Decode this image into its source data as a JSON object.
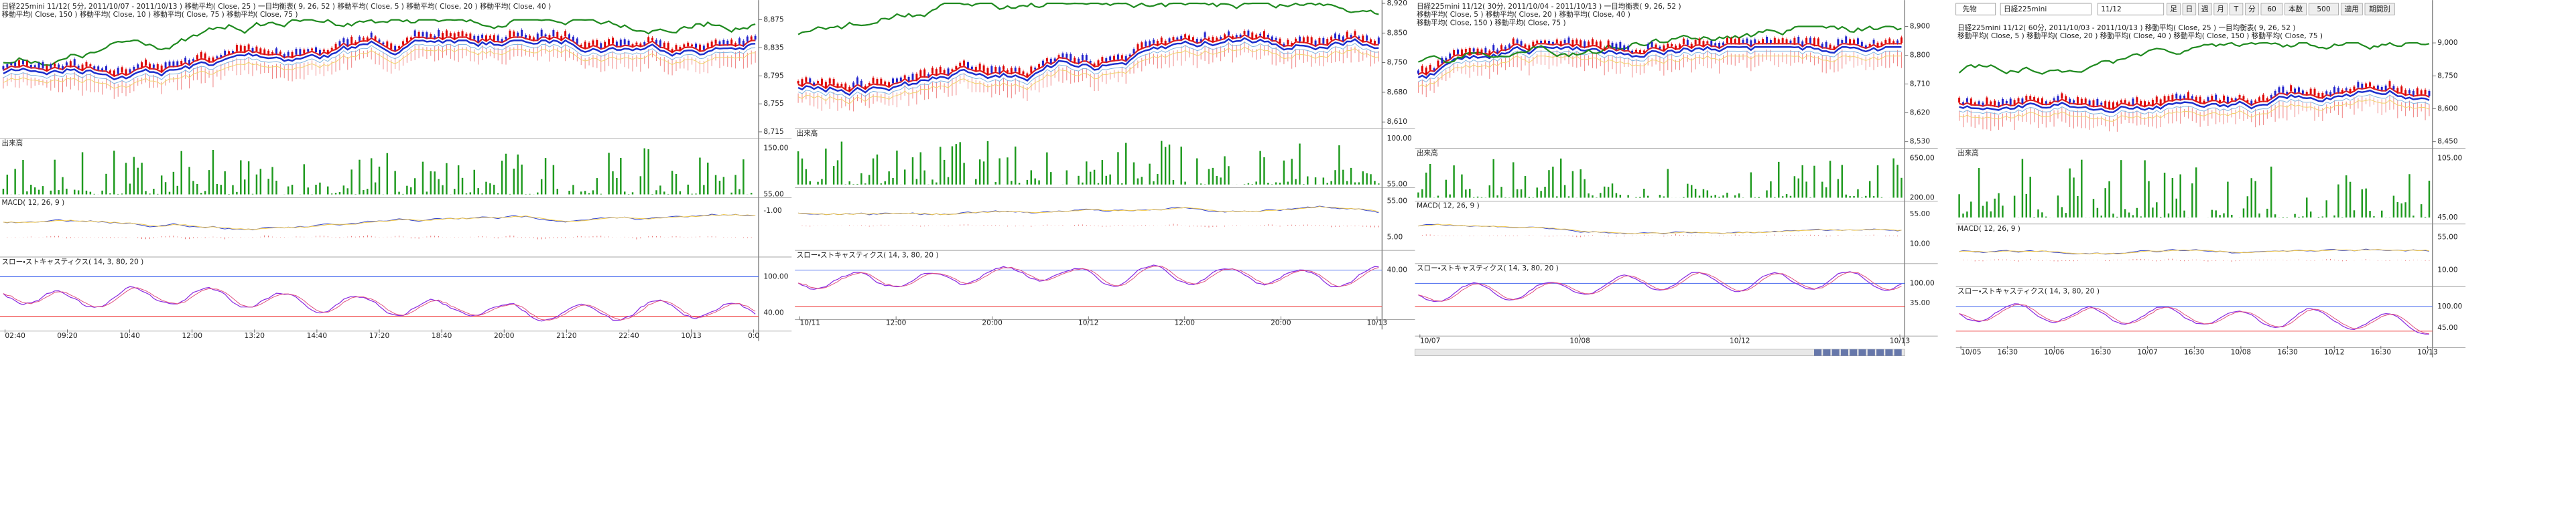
{
  "toolbar": {
    "market": "先物",
    "symbol": "日経225mini",
    "contract": "11/12",
    "buttons": [
      "足",
      "日",
      "週",
      "月",
      "T",
      "分",
      "60",
      "本数",
      "500",
      "適用",
      "期間別"
    ]
  },
  "panels": [
    {
      "header_lines": [
        "日経225mini 11/12( 5分, 2011/10/07 - 2011/10/13 )   移動平均( Close, 25 )   一目均衡表( 9, 26, 52 )   移動平均( Close, 5 )   移動平均( Close, 20 )   移動平均( Close, 40 )",
        "移動平均( Close, 150 )   移動平均( Close, 10 )   移動平均( Close, 75 )   移動平均( Close, 75 )"
      ],
      "price_labels": [
        "8,875",
        "8,835",
        "8,795",
        "8,755",
        "8,715"
      ],
      "volume_label": "出来高",
      "volume_axis": [
        "150.00",
        "55.00"
      ],
      "macd_label": "MACD( 12, 26, 9 )",
      "macd_axis": [
        "-1.00"
      ],
      "stoch_label": "スロー・ストキャスティクス( 14, 3, 80, 20 )",
      "stoch_axis": [
        "100.00",
        "40.00"
      ],
      "time_labels": [
        "02:40",
        "09:20",
        "10:40",
        "12:00",
        "13:20",
        "14:40",
        "17:20",
        "18:40",
        "20:00",
        "21:20",
        "22:40",
        "10/13",
        "0:0"
      ]
    },
    {
      "header_lines": [],
      "price_labels": [
        "8,920",
        "8,850",
        "8,750",
        "8,680",
        "8,610"
      ],
      "volume_label": "出来高",
      "volume_axis": [
        "100.00",
        "55.00"
      ],
      "macd_label": null,
      "macd_axis": [
        "55.00",
        "5.00"
      ],
      "stoch_label": "スロー・ストキャスティクス( 14, 3, 80, 20 )",
      "stoch_axis": [
        "40.00"
      ],
      "time_labels": [
        "10/11",
        "12:00",
        "20:00",
        "10/12",
        "12:00",
        "20:00",
        "10/13"
      ]
    },
    {
      "header_lines": [
        "日経225mini 11/12( 30分, 2011/10/04 - 2011/10/13 )   一目均衡表( 9, 26, 52 )",
        "移動平均( Close, 5 )   移動平均( Close, 20 )   移動平均( Close, 40 )",
        "移動平均( Close, 150 )   移動平均( Close, 75 )"
      ],
      "price_labels": [
        "8,900",
        "8,800",
        "8,710",
        "8,620",
        "8,530"
      ],
      "volume_label": "出来高",
      "volume_axis": [
        "650.00",
        "200.00"
      ],
      "macd_label": "MACD( 12, 26, 9 )",
      "macd_axis": [
        "55.00",
        "10.00"
      ],
      "stoch_label": "スロー・ストキャスティクス( 14, 3, 80, 20 )",
      "stoch_axis": [
        "100.00",
        "35.00"
      ],
      "time_labels": [
        "10/07",
        "10/08",
        "10/12",
        "10/13"
      ]
    },
    {
      "header_lines": [
        "日経225mini 11/12( 60分, 2011/10/03 - 2011/10/13 )   移動平均( Close, 25 )   一目均衡表( 9, 26, 52 )",
        "移動平均( Close, 5 )   移動平均( Close, 20 )   移動平均( Close, 40 )   移動平均( Close, 150 )   移動平均( Close, 75 )"
      ],
      "price_labels": [
        "9,000",
        "8,750",
        "8,600",
        "8,450"
      ],
      "volume_label": "出来高",
      "volume_axis": [
        "105.00",
        "45.00"
      ],
      "macd_label": "MACD( 12, 26, 9 )",
      "macd_axis": [
        "55.00",
        "10.00"
      ],
      "stoch_label": "スロー・ストキャスティクス( 14, 3, 80, 20 )",
      "stoch_axis": [
        "100.00",
        "45.00"
      ],
      "time_labels": [
        "10/05",
        "16:30",
        "10/06",
        "16:30",
        "10/07",
        "16:30",
        "10/08",
        "16:30",
        "10/12",
        "16:30",
        "10/13"
      ]
    }
  ]
}
